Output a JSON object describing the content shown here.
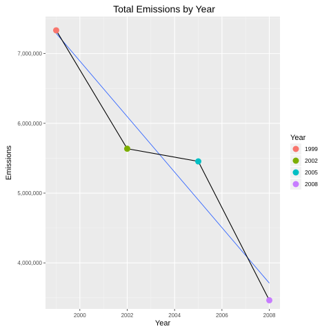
{
  "chart_data": {
    "type": "scatter",
    "title": "Total Emissions by Year",
    "xlabel": "Year",
    "ylabel": "Emissions",
    "x": [
      1999,
      2002,
      2005,
      2008
    ],
    "series": [
      {
        "values": [
          7332967,
          5635780,
          5454703,
          3464206
        ]
      }
    ],
    "trend_line": {
      "x": [
        1999,
        2008
      ],
      "y": [
        7290000,
        3710000
      ],
      "color": "#3366FF"
    },
    "connect_line_color": "#000000",
    "xlim": [
      1998.55,
      2008.45
    ],
    "ylim": [
      3340000,
      7530000
    ],
    "x_ticks": [
      2000,
      2002,
      2004,
      2006,
      2008
    ],
    "x_tick_labels": [
      "2000",
      "2002",
      "2004",
      "2006",
      "2008"
    ],
    "y_ticks": [
      4000000,
      5000000,
      6000000,
      7000000
    ],
    "y_tick_labels": [
      "4,000,000",
      "5,000,000",
      "6,000,000",
      "7,000,000"
    ],
    "grid": true,
    "panel_background": "#EBEBEB",
    "legend": {
      "title": "Year",
      "placement": "right",
      "entries": [
        {
          "label": "1999",
          "color": "#F8766D"
        },
        {
          "label": "2002",
          "color": "#7CAE00"
        },
        {
          "label": "2005",
          "color": "#00BFC4"
        },
        {
          "label": "2008",
          "color": "#C77CFF"
        }
      ]
    }
  }
}
